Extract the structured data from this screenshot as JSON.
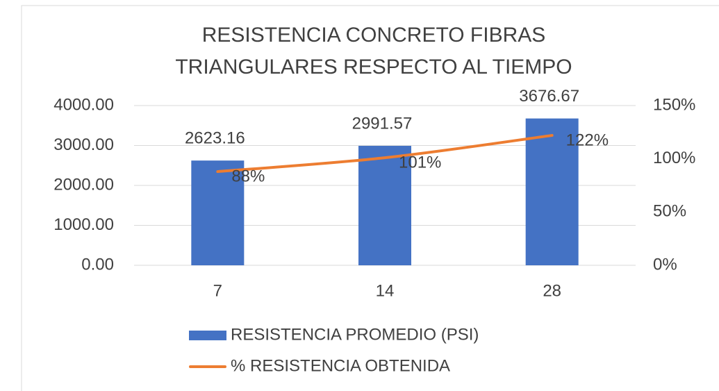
{
  "chart_data": {
    "type": "bar",
    "title": [
      "RESISTENCIA CONCRETO FIBRAS",
      "TRIANGULARES RESPECTO AL TIEMPO"
    ],
    "categories": [
      "7",
      "14",
      "28"
    ],
    "series": [
      {
        "name": "RESISTENCIA PROMEDIO (PSI)",
        "type": "bar",
        "color": "#4472c4",
        "values": [
          2623.16,
          2991.57,
          3676.67
        ],
        "value_labels": [
          "2623.16",
          "2991.57",
          "3676.67"
        ]
      },
      {
        "name": "% RESISTENCIA OBTENIDA",
        "type": "line",
        "axis": "y2",
        "color": "#ed7d31",
        "values": [
          88,
          101,
          122
        ],
        "value_labels": [
          "88%",
          "101%",
          "122%"
        ]
      }
    ],
    "ylim": [
      0,
      4000
    ],
    "yticks": [
      {
        "value": 0,
        "label": "0.00"
      },
      {
        "value": 1000,
        "label": "1000.00"
      },
      {
        "value": 2000,
        "label": "2000.00"
      },
      {
        "value": 3000,
        "label": "3000.00"
      },
      {
        "value": 4000,
        "label": "4000.00"
      }
    ],
    "y2lim": [
      0,
      150
    ],
    "y2ticks": [
      {
        "value": 0,
        "label": "0%"
      },
      {
        "value": 50,
        "label": "50%"
      },
      {
        "value": 100,
        "label": "100%"
      },
      {
        "value": 150,
        "label": "150%"
      }
    ],
    "grid": true,
    "legend": "bottom"
  }
}
